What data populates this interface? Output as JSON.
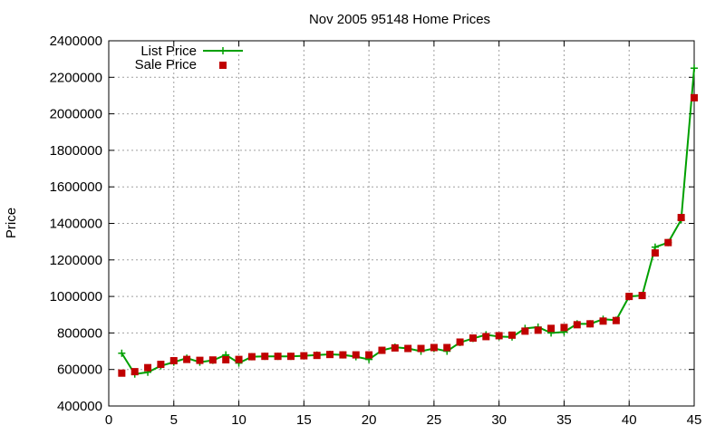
{
  "colors": {
    "list_price": "#00a000",
    "sale_price": "#c00000",
    "grid": "#a0a0a0",
    "axis": "#000000"
  },
  "chart_data": {
    "type": "line",
    "title": "Nov 2005 95148 Home Prices",
    "xlabel": "",
    "ylabel": "Price",
    "xlim": [
      0,
      45
    ],
    "ylim": [
      400000,
      2400000
    ],
    "xticks": [
      0,
      5,
      10,
      15,
      20,
      25,
      30,
      35,
      40,
      45
    ],
    "yticks": [
      400000,
      600000,
      800000,
      1000000,
      1200000,
      1400000,
      1600000,
      1800000,
      2000000,
      2200000,
      2400000
    ],
    "grid": true,
    "legend_position": "top-left",
    "series": [
      {
        "name": "List Price",
        "style": "lines+crosses",
        "color": "#00a000",
        "x": [
          1,
          2,
          3,
          4,
          5,
          6,
          7,
          8,
          9,
          10,
          11,
          12,
          13,
          14,
          15,
          16,
          17,
          18,
          19,
          20,
          21,
          22,
          23,
          24,
          25,
          26,
          27,
          28,
          29,
          30,
          31,
          32,
          33,
          34,
          35,
          36,
          37,
          38,
          39,
          40,
          41,
          42,
          43,
          44,
          45
        ],
        "y": [
          689000,
          575000,
          585000,
          620000,
          640000,
          662000,
          640000,
          650000,
          680000,
          635000,
          670000,
          672000,
          672000,
          672000,
          675000,
          679000,
          683000,
          680000,
          670000,
          655000,
          705000,
          722000,
          715000,
          700000,
          715000,
          700000,
          748000,
          770000,
          790000,
          780000,
          778000,
          825000,
          832000,
          800000,
          805000,
          850000,
          850000,
          875000,
          870000,
          1000000,
          1005000,
          1270000,
          1295000,
          1420000,
          2250000
        ]
      },
      {
        "name": "Sale Price",
        "style": "points",
        "color": "#c00000",
        "x": [
          1,
          2,
          3,
          4,
          5,
          6,
          7,
          8,
          9,
          10,
          11,
          12,
          13,
          14,
          15,
          16,
          17,
          18,
          19,
          20,
          21,
          22,
          23,
          24,
          25,
          26,
          27,
          28,
          29,
          30,
          31,
          32,
          33,
          34,
          35,
          36,
          37,
          38,
          39,
          40,
          41,
          42,
          43,
          44,
          45
        ],
        "y": [
          580000,
          588000,
          610000,
          628000,
          648000,
          655000,
          650000,
          652000,
          653000,
          655000,
          670000,
          672000,
          672000,
          672000,
          675000,
          677000,
          682000,
          680000,
          680000,
          680000,
          705000,
          718000,
          715000,
          715000,
          720000,
          720000,
          750000,
          772000,
          780000,
          785000,
          788000,
          810000,
          815000,
          825000,
          830000,
          845000,
          850000,
          865000,
          868000,
          1000000,
          1005000,
          1238000,
          1295000,
          1432000,
          2088000
        ]
      }
    ]
  }
}
